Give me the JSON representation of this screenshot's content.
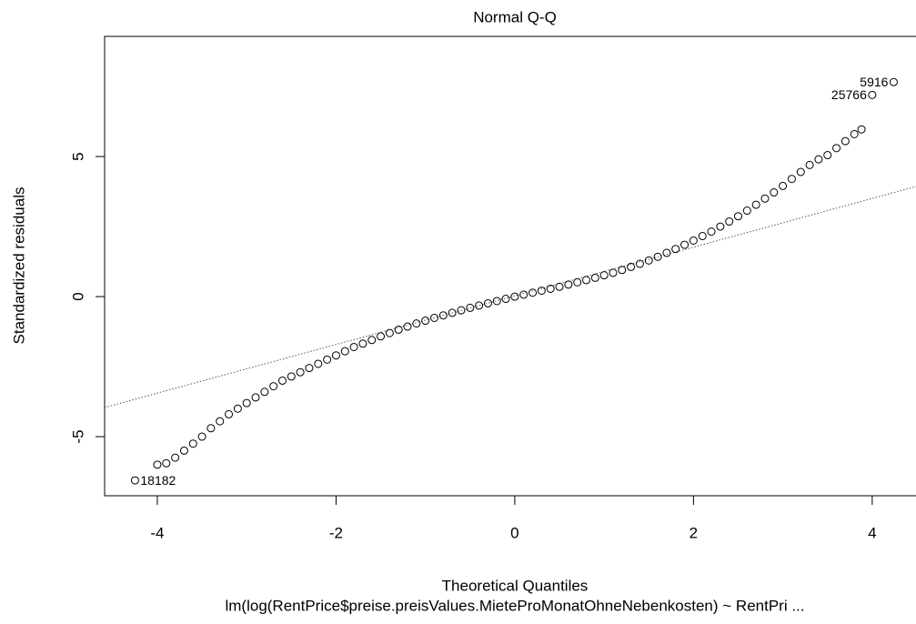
{
  "chart_data": {
    "type": "scatter",
    "title": "Normal Q-Q",
    "x_label": "Theoretical Quantiles",
    "y_label": "Standardized residuals",
    "subtitle": "lm(log(RentPrice$preise.preisValues.MieteProMonatOhneNebenkosten) ~ RentPri ...",
    "xlim": [
      -4.59,
      4.49
    ],
    "ylim": [
      -7.11,
      9.29
    ],
    "xticks": [
      -4,
      -2,
      0,
      2,
      4
    ],
    "yticks": [
      -5,
      0,
      5
    ],
    "series": [
      {
        "name": "residuals",
        "color": "#000000",
        "x": [
          -4.25,
          -4.0,
          -3.9,
          -3.8,
          -3.7,
          -3.6,
          -3.5,
          -3.4,
          -3.3,
          -3.2,
          -3.1,
          -3.0,
          -2.9,
          -2.8,
          -2.7,
          -2.6,
          -2.5,
          -2.4,
          -2.3,
          -2.2,
          -2.1,
          -2.0,
          -1.9,
          -1.8,
          -1.7,
          -1.6,
          -1.5,
          -1.4,
          -1.3,
          -1.2,
          -1.1,
          -1.0,
          -0.9,
          -0.8,
          -0.7,
          -0.6,
          -0.5,
          -0.4,
          -0.3,
          -0.2,
          -0.1,
          0,
          0.1,
          0.2,
          0.3,
          0.4,
          0.5,
          0.6,
          0.7,
          0.8,
          0.9,
          1.0,
          1.1,
          1.2,
          1.3,
          1.4,
          1.5,
          1.6,
          1.7,
          1.8,
          1.9,
          2.0,
          2.1,
          2.2,
          2.3,
          2.4,
          2.5,
          2.6,
          2.7,
          2.8,
          2.9,
          3.0,
          3.1,
          3.2,
          3.3,
          3.4,
          3.5,
          3.6,
          3.7,
          3.8,
          3.88,
          4.0,
          4.24
        ],
        "values": [
          -6.56,
          -6.0,
          -5.95,
          -5.75,
          -5.5,
          -5.25,
          -5.0,
          -4.7,
          -4.45,
          -4.2,
          -4.0,
          -3.8,
          -3.6,
          -3.4,
          -3.2,
          -3.0,
          -2.85,
          -2.7,
          -2.55,
          -2.4,
          -2.25,
          -2.1,
          -1.95,
          -1.8,
          -1.68,
          -1.55,
          -1.42,
          -1.3,
          -1.18,
          -1.07,
          -0.96,
          -0.86,
          -0.76,
          -0.67,
          -0.58,
          -0.49,
          -0.4,
          -0.32,
          -0.24,
          -0.16,
          -0.08,
          0,
          0.07,
          0.14,
          0.21,
          0.28,
          0.35,
          0.43,
          0.51,
          0.59,
          0.67,
          0.76,
          0.85,
          0.95,
          1.06,
          1.17,
          1.29,
          1.42,
          1.56,
          1.7,
          1.85,
          2.0,
          2.16,
          2.32,
          2.5,
          2.68,
          2.87,
          3.07,
          3.28,
          3.5,
          3.72,
          3.95,
          4.2,
          4.45,
          4.7,
          4.9,
          5.05,
          5.3,
          5.55,
          5.8,
          5.97,
          7.2,
          7.66
        ]
      }
    ],
    "qq_line": {
      "x": [
        -4.59,
        4.49
      ],
      "y": [
        -3.96,
        3.93
      ],
      "color": "#555555"
    },
    "annotations": [
      {
        "text": "5916",
        "x": 4.24,
        "y": 7.66,
        "side": "left"
      },
      {
        "text": "25766",
        "x": 4.0,
        "y": 7.2,
        "side": "left"
      },
      {
        "text": "18182",
        "x": -4.25,
        "y": -6.56,
        "side": "right"
      }
    ]
  }
}
